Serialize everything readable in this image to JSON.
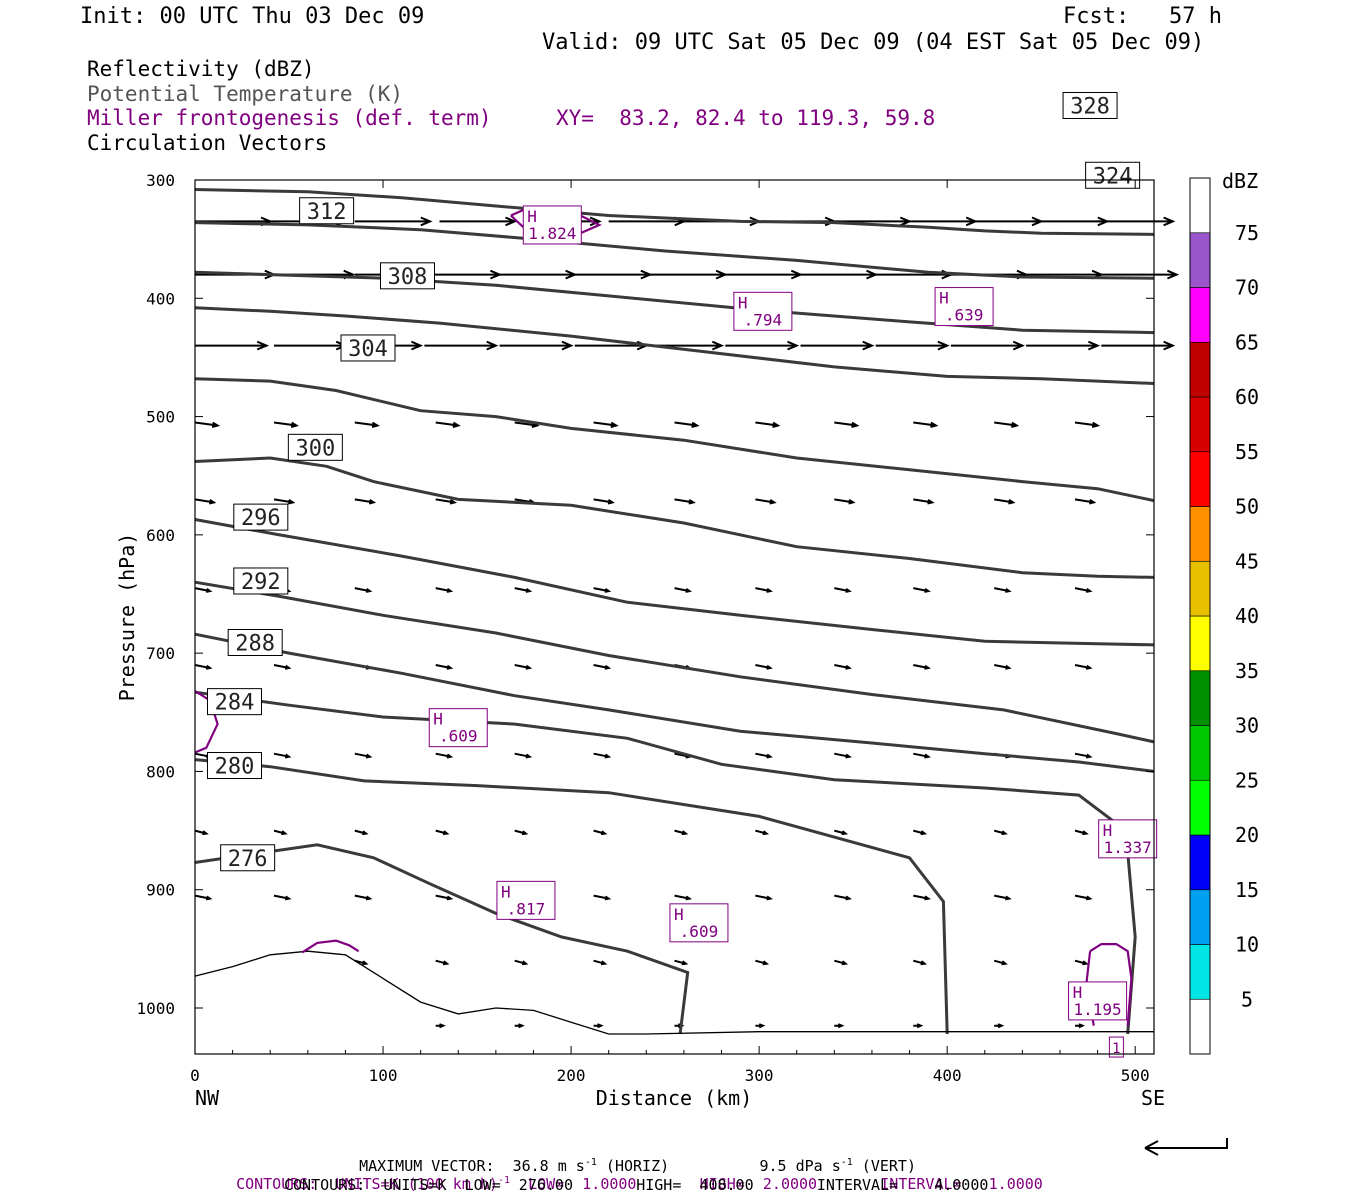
{
  "header": {
    "init": "Init: 00 UTC Thu 03 Dec 09",
    "fcst": "Fcst:   57 h",
    "valid": "Valid: 09 UTC Sat 05 Dec 09 (04 EST Sat 05 Dec 09)",
    "field1": "Reflectivity (dBZ)",
    "field2": "Potential Temperature (K)",
    "field3": "Miller frontogenesis (def. term)",
    "xy": "XY=  83.2, 82.4 to 119.3, 59.8",
    "field4": "Circulation Vectors"
  },
  "footer": {
    "max_prefix": "MAXIMUM VECTOR:  36.8 m s",
    "max_mid": " (HORIZ)          9.5 dPa s",
    "max_end": " (VERT)",
    "sup": "-1",
    "c1_prefix": "CONTOURS:  UNITS=K (100 km h)",
    "c1_end": "  LOW=  1.0000       HIGH=  2.0000       INTERVAL=   1.0000",
    "c2": "CONTOURS:  UNITS=K  LOW=  276.00       HIGH=  408.00       INTERVAL=    4.0000"
  },
  "colors": {
    "theta": "#3a3a3a",
    "fronto": "#800080",
    "axis": "#000000"
  },
  "chart_data": {
    "type": "cross-section",
    "xlabel": "Distance (km)",
    "ylabel": "Pressure (hPa)",
    "xlim": [
      0,
      510
    ],
    "ylim": [
      1040,
      300
    ],
    "xticks": [
      0,
      100,
      200,
      300,
      400,
      500
    ],
    "yticks": [
      300,
      400,
      500,
      600,
      700,
      800,
      900,
      1000
    ],
    "x_end_labels": [
      "NW",
      "SE"
    ],
    "colorbar": {
      "unit": "dBZ",
      "levels": [
        5,
        10,
        15,
        20,
        25,
        30,
        35,
        40,
        45,
        50,
        55,
        60,
        65,
        70,
        75
      ],
      "colors": [
        "#ffffff",
        "#00e5e5",
        "#00a0f0",
        "#0000f6",
        "#00ff00",
        "#00c800",
        "#009000",
        "#ffff00",
        "#e7c000",
        "#ff9000",
        "#ff0000",
        "#d60000",
        "#c00000",
        "#ff00ff",
        "#9955c9",
        "#ffffff"
      ]
    },
    "theta_contours": [
      {
        "value": 276,
        "label": "276",
        "label_at": [
          28,
          873
        ],
        "points": [
          [
            0,
            877
          ],
          [
            30,
            870
          ],
          [
            65,
            862
          ],
          [
            95,
            873
          ],
          [
            125,
            895
          ],
          [
            160,
            920
          ],
          [
            195,
            940
          ],
          [
            230,
            952
          ],
          [
            262,
            970
          ],
          [
            258,
            1022
          ]
        ]
      },
      {
        "value": 280,
        "label": "280",
        "label_at": [
          21,
          795
        ],
        "points": [
          [
            0,
            790
          ],
          [
            40,
            796
          ],
          [
            90,
            808
          ],
          [
            150,
            812
          ],
          [
            220,
            818
          ],
          [
            300,
            838
          ],
          [
            380,
            873
          ],
          [
            398,
            910
          ],
          [
            400,
            1022
          ]
        ]
      },
      {
        "value": 284,
        "label": "284",
        "label_at": [
          21,
          741
        ],
        "points": [
          [
            0,
            733
          ],
          [
            50,
            744
          ],
          [
            100,
            754
          ],
          [
            170,
            760
          ],
          [
            230,
            772
          ],
          [
            280,
            794
          ],
          [
            340,
            807
          ],
          [
            420,
            814
          ],
          [
            470,
            820
          ],
          [
            495,
            850
          ],
          [
            500,
            940
          ],
          [
            496,
            1022
          ]
        ]
      },
      {
        "value": 288,
        "label": "288",
        "label_at": [
          32,
          691
        ],
        "points": [
          [
            0,
            684
          ],
          [
            50,
            700
          ],
          [
            110,
            717
          ],
          [
            170,
            736
          ],
          [
            220,
            748
          ],
          [
            290,
            766
          ],
          [
            360,
            776
          ],
          [
            420,
            785
          ],
          [
            470,
            792
          ],
          [
            510,
            800
          ]
        ]
      },
      {
        "value": 292,
        "label": "292",
        "label_at": [
          35,
          639
        ],
        "points": [
          [
            0,
            640
          ],
          [
            45,
            652
          ],
          [
            100,
            668
          ],
          [
            160,
            683
          ],
          [
            220,
            702
          ],
          [
            290,
            720
          ],
          [
            360,
            735
          ],
          [
            430,
            748
          ],
          [
            490,
            768
          ],
          [
            510,
            775
          ]
        ]
      },
      {
        "value": 296,
        "label": "296",
        "label_at": [
          35,
          585
        ],
        "points": [
          [
            0,
            587
          ],
          [
            45,
            600
          ],
          [
            110,
            618
          ],
          [
            170,
            636
          ],
          [
            230,
            657
          ],
          [
            290,
            668
          ],
          [
            360,
            680
          ],
          [
            420,
            690
          ],
          [
            480,
            692
          ],
          [
            510,
            693
          ]
        ]
      },
      {
        "value": 300,
        "label": "300",
        "label_at": [
          64,
          526
        ],
        "points": [
          [
            0,
            538
          ],
          [
            40,
            535
          ],
          [
            70,
            542
          ],
          [
            95,
            555
          ],
          [
            140,
            570
          ],
          [
            200,
            575
          ],
          [
            260,
            590
          ],
          [
            320,
            610
          ],
          [
            380,
            620
          ],
          [
            440,
            632
          ],
          [
            480,
            635
          ],
          [
            510,
            636
          ]
        ]
      },
      {
        "value": 304,
        "label": "304",
        "label_at": [
          92,
          442
        ],
        "points": [
          [
            0,
            468
          ],
          [
            40,
            470
          ],
          [
            75,
            478
          ],
          [
            120,
            495
          ],
          [
            160,
            500
          ],
          [
            200,
            510
          ],
          [
            260,
            520
          ],
          [
            320,
            535
          ],
          [
            380,
            545
          ],
          [
            440,
            555
          ],
          [
            480,
            561
          ],
          [
            510,
            571
          ]
        ]
      },
      {
        "value": 308,
        "label": "308",
        "label_at": [
          113,
          381
        ],
        "points": [
          [
            0,
            408
          ],
          [
            40,
            411
          ],
          [
            80,
            415
          ],
          [
            130,
            421
          ],
          [
            200,
            432
          ],
          [
            270,
            445
          ],
          [
            340,
            458
          ],
          [
            400,
            466
          ],
          [
            450,
            468
          ],
          [
            510,
            472
          ]
        ]
      },
      {
        "value": 312,
        "label": "312",
        "label_at": [
          70,
          326
        ],
        "points": [
          [
            0,
            378
          ],
          [
            40,
            380
          ],
          [
            100,
            383
          ],
          [
            160,
            389
          ],
          [
            220,
            398
          ],
          [
            300,
            410
          ],
          [
            380,
            420
          ],
          [
            440,
            427
          ],
          [
            510,
            429
          ]
        ]
      },
      {
        "value": 324,
        "label": "324",
        "label_at": [
          488,
          296
        ],
        "points": [
          [
            0,
            336
          ],
          [
            60,
            338
          ],
          [
            120,
            342
          ],
          [
            180,
            350
          ],
          [
            250,
            360
          ],
          [
            320,
            368
          ],
          [
            390,
            378
          ],
          [
            440,
            382
          ],
          [
            510,
            383
          ]
        ]
      },
      {
        "value": 328,
        "label": "328",
        "label_at": [
          476,
          237
        ],
        "points": [
          [
            0,
            308
          ],
          [
            60,
            310
          ],
          [
            110,
            315
          ],
          [
            160,
            322
          ],
          [
            220,
            330
          ],
          [
            290,
            335
          ],
          [
            340,
            336
          ],
          [
            390,
            340
          ],
          [
            420,
            343
          ],
          [
            450,
            345
          ],
          [
            510,
            346
          ]
        ]
      }
    ],
    "surface": [
      [
        0,
        973
      ],
      [
        20,
        965
      ],
      [
        40,
        955
      ],
      [
        60,
        952
      ],
      [
        80,
        955
      ],
      [
        100,
        975
      ],
      [
        120,
        995
      ],
      [
        140,
        1005
      ],
      [
        160,
        1000
      ],
      [
        180,
        1002
      ],
      [
        200,
        1012
      ],
      [
        220,
        1022
      ],
      [
        240,
        1022
      ],
      [
        300,
        1020
      ],
      [
        400,
        1020
      ],
      [
        510,
        1020
      ]
    ],
    "fronto_maxima": [
      {
        "label": "H",
        "value": "1.824",
        "at": [
          190,
          338
        ]
      },
      {
        "label": "H",
        "value": ".639",
        "at": [
          409,
          407
        ]
      },
      {
        "label": "H",
        "value": ".794",
        "at": [
          302,
          411
        ]
      },
      {
        "label": "H",
        "value": ".609",
        "at": [
          140,
          763
        ]
      },
      {
        "label": "H",
        "value": "1.337",
        "at": [
          496,
          857
        ]
      },
      {
        "label": "H",
        "value": ".817",
        "at": [
          176,
          909
        ]
      },
      {
        "label": "H",
        "value": ".609",
        "at": [
          268,
          928
        ]
      },
      {
        "label": "H",
        "value": "1.195",
        "at": [
          480,
          994
        ]
      },
      {
        "label": "",
        "value": "1",
        "at": [
          490,
          1033
        ]
      }
    ],
    "fronto_contours": [
      [
        [
          0,
          732
        ],
        [
          8,
          740
        ],
        [
          12,
          760
        ],
        [
          6,
          780
        ],
        [
          0,
          784
        ]
      ],
      [
        [
          168,
          330
        ],
        [
          178,
          345
        ],
        [
          190,
          352
        ],
        [
          205,
          345
        ],
        [
          215,
          338
        ],
        [
          205,
          330
        ],
        [
          190,
          325
        ],
        [
          175,
          325
        ],
        [
          168,
          330
        ]
      ],
      [
        [
          57,
          953
        ],
        [
          65,
          945
        ],
        [
          75,
          943
        ],
        [
          82,
          947
        ],
        [
          87,
          952
        ]
      ],
      [
        [
          476,
          952
        ],
        [
          482,
          946
        ],
        [
          490,
          946
        ],
        [
          496,
          952
        ],
        [
          498,
          975
        ],
        [
          496,
          1015
        ]
      ],
      [
        [
          476,
          952
        ],
        [
          474,
          980
        ],
        [
          478,
          1015
        ]
      ]
    ],
    "vector_rows": [
      {
        "p": 335,
        "dx": 40,
        "xs": [
          0,
          40,
          85,
          130,
          175,
          220,
          260,
          300,
          340,
          375,
          410,
          445,
          480
        ]
      },
      {
        "p": 380,
        "dx": 42,
        "xs": [
          0,
          42,
          85,
          120,
          160,
          200,
          240,
          280,
          320,
          360,
          400,
          440,
          480
        ]
      },
      {
        "p": 440,
        "dx": 38,
        "xs": [
          0,
          42,
          82,
          122,
          162,
          202,
          242,
          282,
          322,
          362,
          402,
          442,
          482
        ]
      },
      {
        "p": 505,
        "dx": 12,
        "xs": [
          0,
          42,
          85,
          128,
          170,
          212,
          255,
          298,
          340,
          382,
          425,
          468
        ]
      },
      {
        "p": 570,
        "dx": 10,
        "xs": [
          0,
          42,
          85,
          128,
          170,
          212,
          255,
          298,
          340,
          382,
          425,
          468
        ]
      },
      {
        "p": 645,
        "dx": 8,
        "xs": [
          0,
          42,
          85,
          128,
          170,
          212,
          255,
          298,
          340,
          382,
          425,
          468
        ]
      },
      {
        "p": 710,
        "dx": 8,
        "xs": [
          0,
          42,
          85,
          128,
          170,
          212,
          255,
          298,
          340,
          382,
          425,
          468
        ]
      },
      {
        "p": 785,
        "dx": 8,
        "xs": [
          0,
          42,
          85,
          128,
          170,
          212,
          255,
          298,
          340,
          382,
          425,
          468
        ]
      },
      {
        "p": 850,
        "dx": 6,
        "xs": [
          0,
          42,
          85,
          128,
          170,
          212,
          255,
          298,
          340,
          382,
          425,
          468
        ]
      },
      {
        "p": 905,
        "dx": 8,
        "xs": [
          0,
          42,
          85,
          128,
          170,
          212,
          255,
          298,
          340,
          382,
          425,
          468
        ]
      },
      {
        "p": 960,
        "dx": 6,
        "xs": [
          85,
          128,
          170,
          212,
          255,
          298,
          340,
          382,
          425,
          468
        ]
      },
      {
        "p": 1015,
        "dx": 4,
        "xs": [
          128,
          170,
          212,
          255,
          298,
          340,
          382,
          425,
          468
        ]
      }
    ]
  }
}
